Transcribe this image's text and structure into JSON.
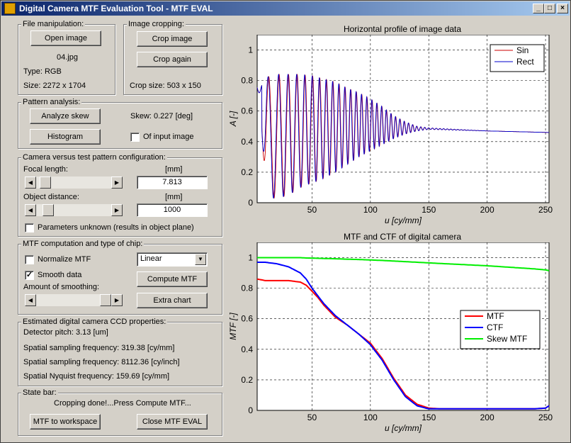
{
  "window": {
    "title": "Digital Camera MTF Evaluation Tool - MTF EVAL"
  },
  "file_panel": {
    "title": "File manipulation:",
    "open_btn": "Open image",
    "filename": "04.jpg",
    "type": "Type: RGB",
    "size": "Size: 2272 x 1704"
  },
  "crop_panel": {
    "title": "Image cropping:",
    "crop_btn": "Crop image",
    "again_btn": "Crop again",
    "crop_size": "Crop size: 503 x 150"
  },
  "pattern_panel": {
    "title": "Pattern analysis:",
    "analyze_btn": "Analyze skew",
    "skew": "Skew: 0.227 [deg]",
    "hist_btn": "Histogram",
    "of_input_label": "Of input image",
    "of_input_checked": false
  },
  "config_panel": {
    "title": "Camera versus test pattern configuration:",
    "focal_label": "Focal length:",
    "focal_unit": "[mm]",
    "focal_value": "7.813",
    "focal_slider": 0.05,
    "object_label": "Object distance:",
    "object_unit": "[mm]",
    "object_value": "1000",
    "object_slider": 0.1,
    "params_unknown_label": "Parameters unknown (results in object plane)",
    "params_unknown_checked": false
  },
  "mtf_panel": {
    "title": "MTF computation and type of chip:",
    "normalize_label": "Normalize MTF",
    "normalize_checked": false,
    "chip_type": "Linear",
    "smooth_label": "Smooth data",
    "smooth_checked": true,
    "compute_btn": "Compute MTF",
    "amount_label": "Amount of smoothing:",
    "smooth_slider": 1.0,
    "extra_btn": "Extra chart"
  },
  "ccd_panel": {
    "title": "Estimated digital camera CCD properties:",
    "pitch": "Detector pitch: 3.13 [um]",
    "sampling_mm": "Spatial sampling frequency: 319.38 [cy/mm]",
    "sampling_inch": "Spatial sampling frequency: 8112.36 [cy/inch]",
    "nyquist": "Spatial Nyquist frequency: 159.69 [cy/mm]"
  },
  "state_panel": {
    "title": "State bar:",
    "message": "Cropping done!...Press Compute MTF...",
    "workspace_btn": "MTF to workspace",
    "close_btn": "Close MTF EVAL"
  },
  "chart_data": [
    {
      "type": "line",
      "title": "Horizontal profile of image data",
      "xlabel": "u [cy/mm]",
      "ylabel": "A [-]",
      "xlim": [
        3,
        253
      ],
      "ylim": [
        0,
        1.1
      ],
      "xticks": [
        50,
        100,
        150,
        200,
        250
      ],
      "yticks": [
        0,
        0.2,
        0.4,
        0.6,
        0.8,
        1
      ],
      "grid": true,
      "legend": "top-right",
      "series": [
        {
          "name": "Sin",
          "color": "#cc0000",
          "desc": "oscillating profile, large amplitude at low u decaying to ~0.48 after u≈140, slight decline to 0.46 at u=253"
        },
        {
          "name": "Rect",
          "color": "#0000cc",
          "desc": "oscillating profile, amplitude 0.03-0.84 near u=20-60, decaying to ~0.48 after u≈140"
        }
      ],
      "envelope": {
        "u": [
          5,
          10,
          15,
          20,
          30,
          40,
          50,
          60,
          70,
          80,
          90,
          100,
          110,
          120,
          130,
          140,
          150,
          200,
          253
        ],
        "upper": [
          0.78,
          0.82,
          0.83,
          0.84,
          0.84,
          0.84,
          0.83,
          0.81,
          0.79,
          0.75,
          0.72,
          0.68,
          0.63,
          0.57,
          0.53,
          0.5,
          0.49,
          0.47,
          0.46
        ],
        "lower": [
          0.72,
          0.1,
          0.03,
          0.03,
          0.05,
          0.1,
          0.13,
          0.16,
          0.2,
          0.25,
          0.3,
          0.34,
          0.38,
          0.42,
          0.45,
          0.47,
          0.48,
          0.47,
          0.46
        ]
      }
    },
    {
      "type": "line",
      "title": "MTF and CTF of digital camera",
      "xlabel": "u [cy/mm]",
      "ylabel": "MTF [-]",
      "xlim": [
        3,
        253
      ],
      "ylim": [
        0,
        1.1
      ],
      "xticks": [
        50,
        100,
        150,
        200,
        250
      ],
      "yticks": [
        0,
        0.2,
        0.4,
        0.6,
        0.8,
        1
      ],
      "grid": true,
      "legend": "right",
      "x": [
        3,
        10,
        20,
        30,
        40,
        45,
        50,
        55,
        60,
        70,
        80,
        90,
        100,
        110,
        120,
        130,
        140,
        150,
        160,
        200,
        240,
        250,
        253
      ],
      "series": [
        {
          "name": "MTF",
          "color": "#ff0000",
          "values": [
            0.86,
            0.85,
            0.85,
            0.85,
            0.84,
            0.82,
            0.78,
            0.74,
            0.69,
            0.61,
            0.56,
            0.5,
            0.44,
            0.34,
            0.21,
            0.1,
            0.04,
            0.015,
            0.01,
            0.01,
            0.01,
            0.015,
            0.03
          ]
        },
        {
          "name": "CTF",
          "color": "#0000ff",
          "values": [
            0.97,
            0.97,
            0.96,
            0.94,
            0.9,
            0.86,
            0.8,
            0.75,
            0.7,
            0.62,
            0.56,
            0.5,
            0.43,
            0.33,
            0.2,
            0.09,
            0.03,
            0.01,
            0.01,
            0.01,
            0.01,
            0.015,
            0.03
          ]
        },
        {
          "name": "Skew MTF",
          "color": "#00ee00",
          "values": [
            1.0,
            1.0,
            1.0,
            1.0,
            1.0,
            0.998,
            0.997,
            0.996,
            0.995,
            0.993,
            0.99,
            0.988,
            0.985,
            0.982,
            0.978,
            0.974,
            0.97,
            0.966,
            0.962,
            0.947,
            0.927,
            0.92,
            0.915
          ]
        }
      ]
    }
  ]
}
